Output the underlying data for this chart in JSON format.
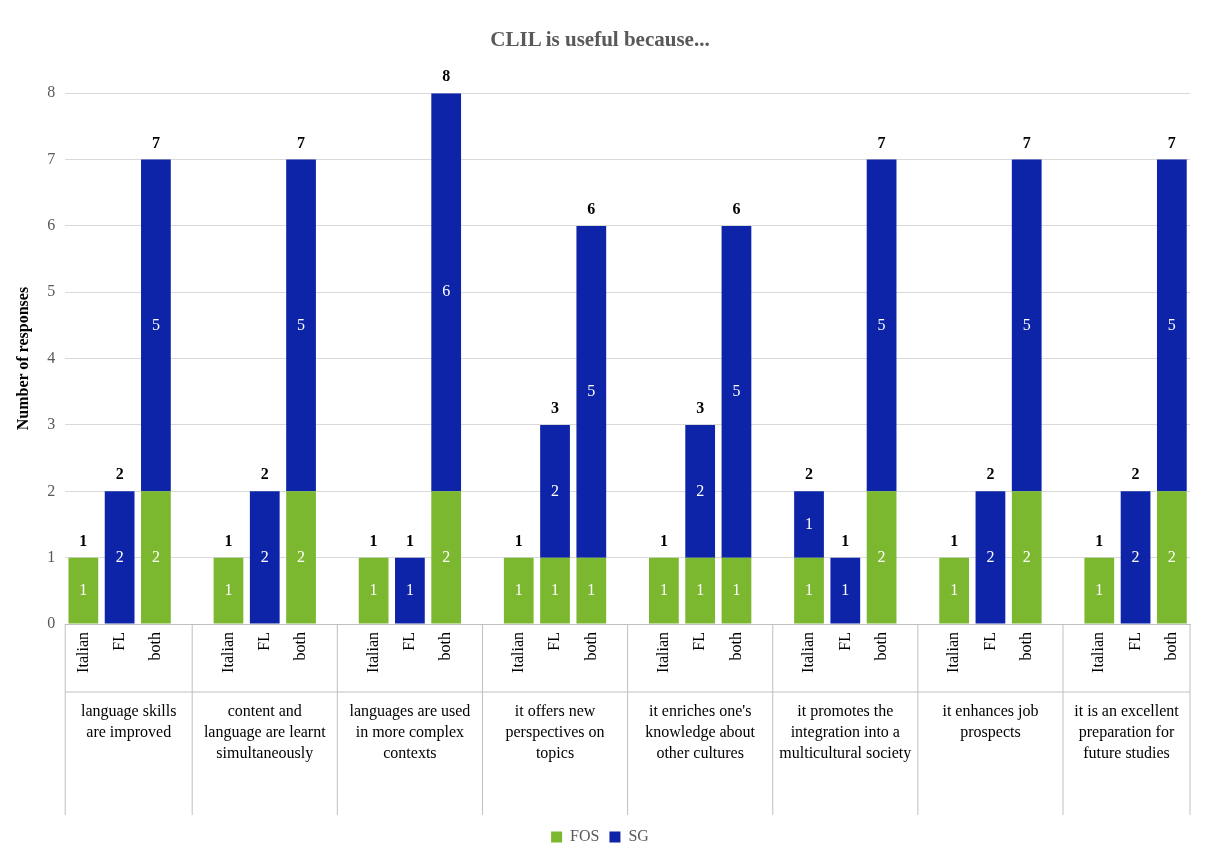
{
  "chart_data": {
    "type": "bar",
    "title": "CLIL is useful because...",
    "ylabel": "Number of responses",
    "categories": [
      "Italian",
      "FL",
      "both",
      null,
      "Italian",
      "FL",
      "both",
      null,
      "Italian",
      "FL",
      "both",
      null,
      "Italian",
      "FL",
      "both",
      null,
      "Italian",
      "FL",
      "both",
      null,
      "Italian",
      "FL",
      "both",
      null,
      "Italian",
      "FL",
      "both",
      null,
      "Italian",
      "FL",
      "both"
    ],
    "series": [
      {
        "name": "FOS",
        "color": "#7cb82f",
        "values": [
          1,
          null,
          2,
          null,
          1,
          null,
          2,
          null,
          1,
          null,
          2,
          null,
          1,
          1,
          1,
          null,
          1,
          1,
          1,
          null,
          1,
          null,
          2,
          null,
          1,
          null,
          2,
          null,
          1,
          null,
          2
        ]
      },
      {
        "name": "SG",
        "color": "#0d23a8",
        "values": [
          null,
          2,
          5,
          null,
          null,
          2,
          5,
          null,
          null,
          1,
          6,
          null,
          null,
          2,
          5,
          null,
          null,
          2,
          5,
          null,
          1,
          1,
          5,
          null,
          null,
          2,
          5,
          null,
          null,
          2,
          5
        ]
      }
    ],
    "stacked": true,
    "data_labels": true,
    "totals": [
      "1",
      "2",
      "7",
      null,
      "1",
      "2",
      "7",
      null,
      "1",
      "1",
      "8",
      null,
      "1",
      "3",
      "6",
      null,
      "1",
      "3",
      "6",
      null,
      "2",
      "1",
      "7",
      null,
      "1",
      "2",
      "7",
      null,
      "1",
      "2",
      "7"
    ],
    "annotations": [
      "language skills are improved",
      "content and language are learnt simultaneously",
      "languages are used in more complex contexts",
      "it offers new perspectives on topics",
      "it enriches one's knowledge about other cultures",
      "it promotes the integration into a multicultural society",
      "it enhances job prospects",
      "it is an excellent preparation for future studies"
    ],
    "ylim": [
      0,
      8
    ],
    "yticks": [
      0,
      1,
      2,
      3,
      4,
      5,
      6,
      7,
      8
    ],
    "grid": "y",
    "legend": "bottom"
  }
}
